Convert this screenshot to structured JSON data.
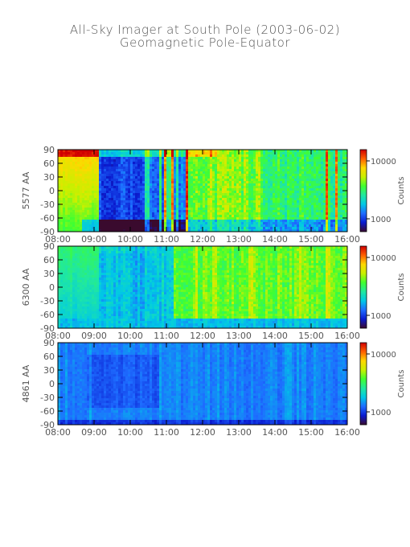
{
  "title": "All-Sky Imager at South Pole (2003-06-02)",
  "subtitle": "Geomagnetic Pole-Equator",
  "colorbar": {
    "label": "Counts",
    "ticks": [
      "10000",
      "1000"
    ],
    "colors": [
      "#3a0a2e",
      "#0a1bd0",
      "#1e6cff",
      "#00c8e6",
      "#20e8a0",
      "#40ff30",
      "#c8f000",
      "#ffd800",
      "#ff6000",
      "#d00000"
    ]
  },
  "chart_data": [
    {
      "type": "heatmap",
      "panel": "5577",
      "ylabel": "5577 AA",
      "yticks": [
        "90",
        "60",
        "30",
        "0",
        "-30",
        "-60",
        "-90"
      ],
      "xticks": [
        "08:00",
        "09:00",
        "10:00",
        "11:00",
        "12:00",
        "13:00",
        "14:00",
        "15:00",
        "16:00"
      ],
      "xlim": [
        "08:00",
        "16:00"
      ],
      "ylim": [
        -90,
        90
      ],
      "zlabel": "Counts",
      "zticks": [
        1000,
        10000
      ],
      "zscale": "log",
      "features": [
        {
          "time_range": [
            "08:00",
            "09:10"
          ],
          "level": "high",
          "note": "green-yellow, orange near top"
        },
        {
          "time_range": [
            "09:10",
            "10:30"
          ],
          "level": "low",
          "note": "dark blue / purple band"
        },
        {
          "time_range": [
            "10:30",
            "11:40"
          ],
          "level": "mixed",
          "note": "cyan and blue streaks"
        },
        {
          "time_range": [
            "11:40",
            "13:30"
          ],
          "level": "high",
          "note": "green/yellow with red spots near 12:00 and 13:10"
        },
        {
          "time_range": [
            "13:30",
            "16:00"
          ],
          "level": "medium",
          "note": "cyan/green with blue bands near -60"
        }
      ]
    },
    {
      "type": "heatmap",
      "panel": "6300",
      "ylabel": "6300 AA",
      "yticks": [
        "90",
        "60",
        "30",
        "0",
        "-30",
        "-60",
        "-90"
      ],
      "xticks": [
        "08:00",
        "09:00",
        "10:00",
        "11:00",
        "12:00",
        "13:00",
        "14:00",
        "15:00",
        "16:00"
      ],
      "xlim": [
        "08:00",
        "16:00"
      ],
      "ylim": [
        -90,
        90
      ],
      "zlabel": "Counts",
      "zticks": [
        1000,
        10000
      ],
      "zscale": "log",
      "features": [
        {
          "time_range": [
            "08:00",
            "09:15"
          ],
          "level": "high",
          "note": "green, cyan lower part"
        },
        {
          "time_range": [
            "09:15",
            "11:30"
          ],
          "level": "low",
          "note": "blue arch shape"
        },
        {
          "time_range": [
            "11:30",
            "16:00"
          ],
          "level": "high",
          "note": "green with yellow streaks, blue near -90"
        }
      ]
    },
    {
      "type": "heatmap",
      "panel": "4861",
      "ylabel": "4861 AA",
      "yticks": [
        "90",
        "60",
        "30",
        "0",
        "-30",
        "-60",
        "-90"
      ],
      "xticks": [
        "08:00",
        "09:00",
        "10:00",
        "11:00",
        "12:00",
        "13:00",
        "14:00",
        "15:00",
        "16:00"
      ],
      "xlim": [
        "08:00",
        "16:00"
      ],
      "ylim": [
        -90,
        90
      ],
      "zlabel": "Counts",
      "zticks": [
        1000,
        10000
      ],
      "zscale": "log",
      "features": [
        {
          "time_range": [
            "08:00",
            "16:00"
          ],
          "level": "low",
          "note": "uniform blue with faint streaks, cyan dashes near -30"
        }
      ]
    }
  ]
}
